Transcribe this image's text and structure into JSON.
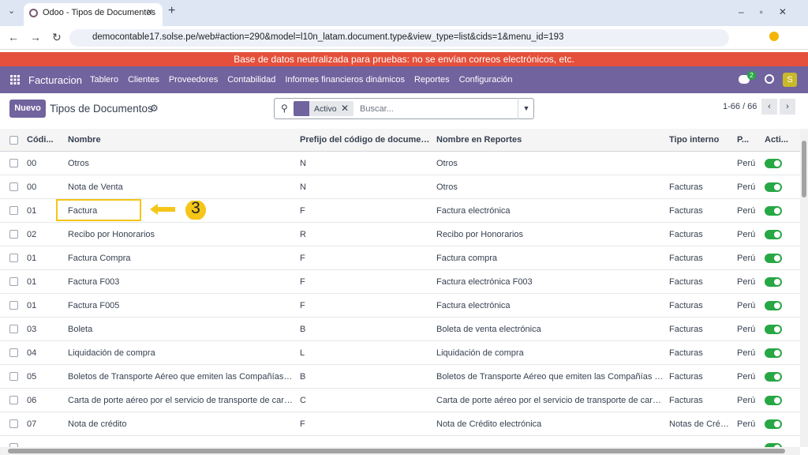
{
  "browser": {
    "tab_title": "Odoo - Tipos de Documentos",
    "url": "democontable17.solse.pe/web#action=290&model=l10n_latam.document.type&view_type=list&cids=1&menu_id=193"
  },
  "banner": "Base de datos neutralizada para pruebas: no se envían correos electrónicos, etc.",
  "navbar": {
    "app": "Facturacion",
    "menu": [
      "Tablero",
      "Clientes",
      "Proveedores",
      "Contabilidad",
      "Informes financieros dinámicos",
      "Reportes",
      "Configuración"
    ],
    "chat_badge": "2",
    "avatar": "S"
  },
  "control_panel": {
    "new_button": "Nuevo",
    "title": "Tipos de Documentos",
    "search_facet": "Activo",
    "search_placeholder": "Buscar...",
    "pager": "1-66 / 66"
  },
  "table": {
    "columns": [
      "Códi...",
      "Nombre",
      "Prefijo del código de documen...",
      "Nombre en Reportes",
      "Tipo interno",
      "P...",
      "Acti..."
    ],
    "rows": [
      [
        "00",
        "Otros",
        "N",
        "Otros",
        null,
        "Perú"
      ],
      [
        "00",
        "Nota de Venta",
        "N",
        "Otros",
        "Facturas",
        "Perú"
      ],
      [
        "01",
        "Factura",
        "F",
        "Factura electrónica",
        "Facturas",
        "Perú"
      ],
      [
        "02",
        "Recibo por Honorarios",
        "R",
        "Recibo por Honorarios",
        "Facturas",
        "Perú"
      ],
      [
        "01",
        "Factura Compra",
        "F",
        "Factura compra",
        "Facturas",
        "Perú"
      ],
      [
        "01",
        "Factura F003",
        "F",
        "Factura electrónica F003",
        "Facturas",
        "Perú"
      ],
      [
        "01",
        "Factura F005",
        "F",
        "Factura electrónica",
        "Facturas",
        "Perú"
      ],
      [
        "03",
        "Boleta",
        "B",
        "Boleta de venta electrónica",
        "Facturas",
        "Perú"
      ],
      [
        "04",
        "Liquidación de compra",
        "L",
        "Liquidación de compra",
        "Facturas",
        "Perú"
      ],
      [
        "05",
        "Boletos de Transporte Aéreo que emiten las Compañías de ...",
        "B",
        "Boletos de Transporte Aéreo que emiten las Compañías de ...",
        "Facturas",
        "Perú"
      ],
      [
        "06",
        "Carta de porte aéreo por el servicio de transporte de carga a...",
        "C",
        "Carta de porte aéreo por el servicio de transporte de carga a...",
        "Facturas",
        "Perú"
      ],
      [
        "07",
        "Nota de crédito",
        "F",
        "Nota de Crédito electrónica",
        "Notas de Crédi...",
        "Perú"
      ]
    ]
  },
  "annotation": {
    "label": "3"
  }
}
